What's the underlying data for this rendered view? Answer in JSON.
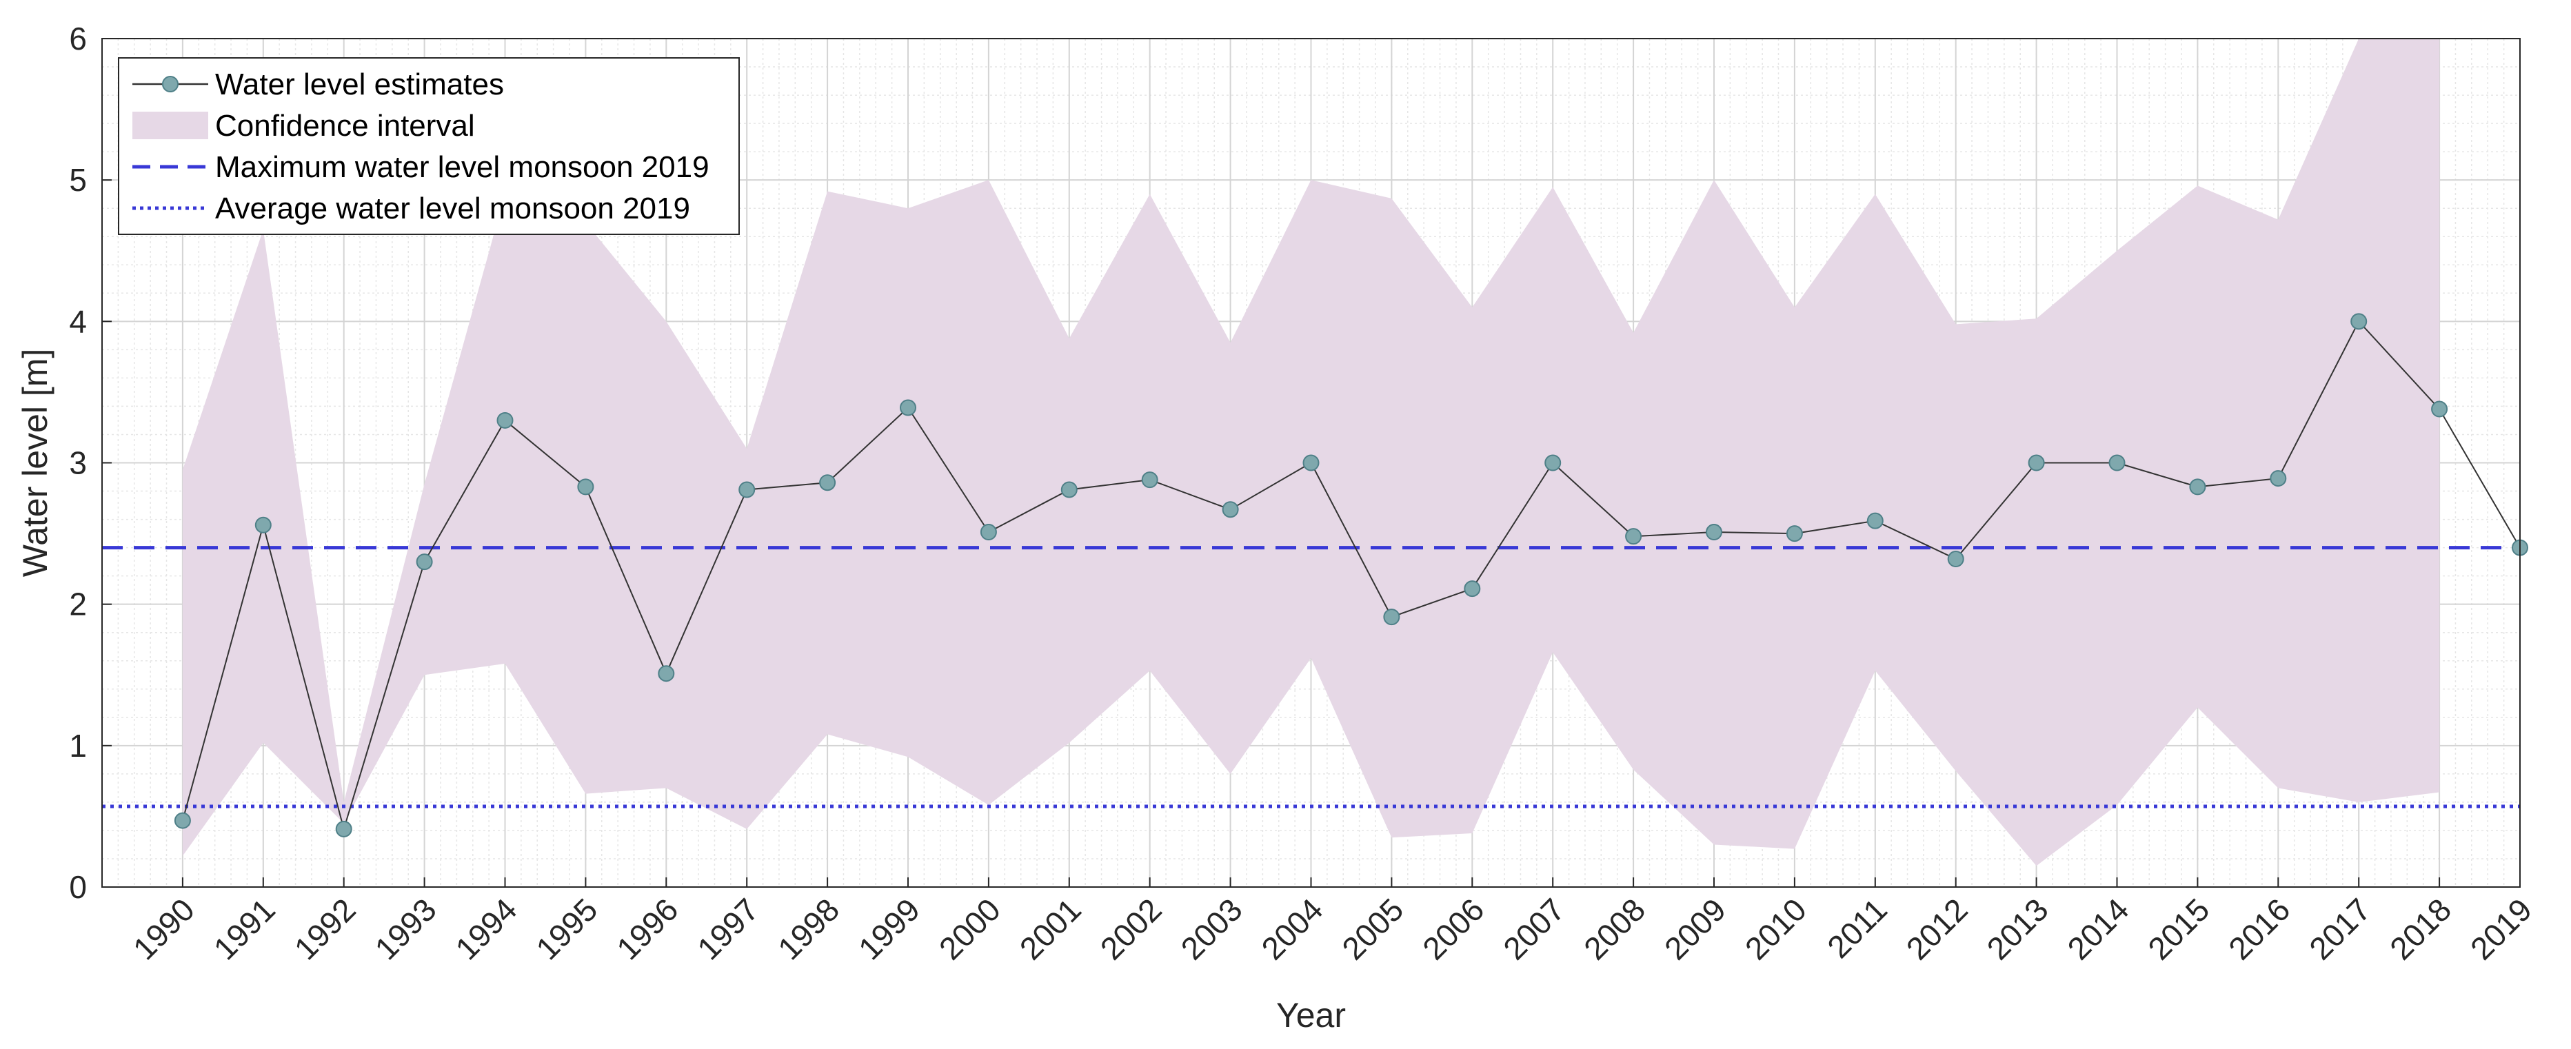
{
  "chart_data": {
    "type": "line",
    "xlabel": "Year",
    "ylabel": "Water level [m]",
    "xlim": [
      1989.0,
      2019.0
    ],
    "ylim": [
      0,
      6
    ],
    "grid": true,
    "minor_grid": true,
    "legend_position": "top-left",
    "x": [
      1990,
      1991,
      1992,
      1993,
      1994,
      1995,
      1996,
      1997,
      1998,
      1999,
      2000,
      2001,
      2002,
      2003,
      2004,
      2005,
      2006,
      2007,
      2008,
      2009,
      2010,
      2011,
      2012,
      2013,
      2014,
      2015,
      2016,
      2017,
      2018,
      2019
    ],
    "x_tick_labels": [
      "1990",
      "1991",
      "1992",
      "1993",
      "1994",
      "1995",
      "1996",
      "1997",
      "1998",
      "1999",
      "2000",
      "2001",
      "2002",
      "2003",
      "2004",
      "2005",
      "2006",
      "2007",
      "2008",
      "2009",
      "2010",
      "2011",
      "2012",
      "2013",
      "2014",
      "2015",
      "2016",
      "2017",
      "2018",
      "2019"
    ],
    "y_ticks": [
      0,
      1,
      2,
      3,
      4,
      5,
      6
    ],
    "y_tick_labels": [
      "0",
      "1",
      "2",
      "3",
      "4",
      "5",
      "6"
    ],
    "series": [
      {
        "name": "Water level estimates",
        "values": [
          0.47,
          2.56,
          0.41,
          2.3,
          3.3,
          2.83,
          1.51,
          2.81,
          2.86,
          3.39,
          2.51,
          2.81,
          2.88,
          2.67,
          3.0,
          1.91,
          2.11,
          3.0,
          2.48,
          2.51,
          2.5,
          2.59,
          2.32,
          3.0,
          3.0,
          2.83,
          2.89,
          4.0,
          3.38,
          2.4
        ],
        "color": "#333333",
        "marker_color": "#7fa8ad"
      }
    ],
    "confidence_interval": {
      "name": "Confidence interval",
      "upper": [
        2.95,
        4.65,
        0.6,
        2.85,
        4.9,
        4.7,
        4.0,
        3.1,
        4.92,
        4.8,
        5.0,
        3.88,
        4.9,
        3.85,
        5.0,
        4.87,
        4.1,
        4.95,
        3.92,
        5.0,
        4.1,
        4.9,
        3.98,
        4.02,
        4.5,
        4.96,
        4.72,
        6.0,
        6.0,
        null
      ],
      "lower": [
        0.22,
        1.02,
        0.45,
        1.5,
        1.58,
        0.66,
        0.7,
        0.41,
        1.08,
        0.92,
        0.58,
        1.02,
        1.53,
        0.8,
        1.62,
        0.35,
        0.38,
        1.66,
        0.83,
        0.3,
        0.27,
        1.53,
        0.82,
        0.15,
        0.58,
        1.27,
        0.7,
        0.6,
        0.67,
        null
      ],
      "color": "#e6d8e6"
    },
    "reference_lines": [
      {
        "name": "Maximum water level monsoon 2019",
        "value": 2.4,
        "style": "dashed",
        "color": "#3838d6"
      },
      {
        "name": "Average water level monsoon 2019",
        "value": 0.57,
        "style": "dotted",
        "color": "#3838d6"
      }
    ]
  },
  "legend": {
    "items": [
      {
        "label": "Water level estimates",
        "kind": "line-marker"
      },
      {
        "label": "Confidence interval",
        "kind": "patch"
      },
      {
        "label": "Maximum water level monsoon 2019",
        "kind": "dashed"
      },
      {
        "label": "Average water level monsoon 2019",
        "kind": "dotted"
      }
    ]
  }
}
